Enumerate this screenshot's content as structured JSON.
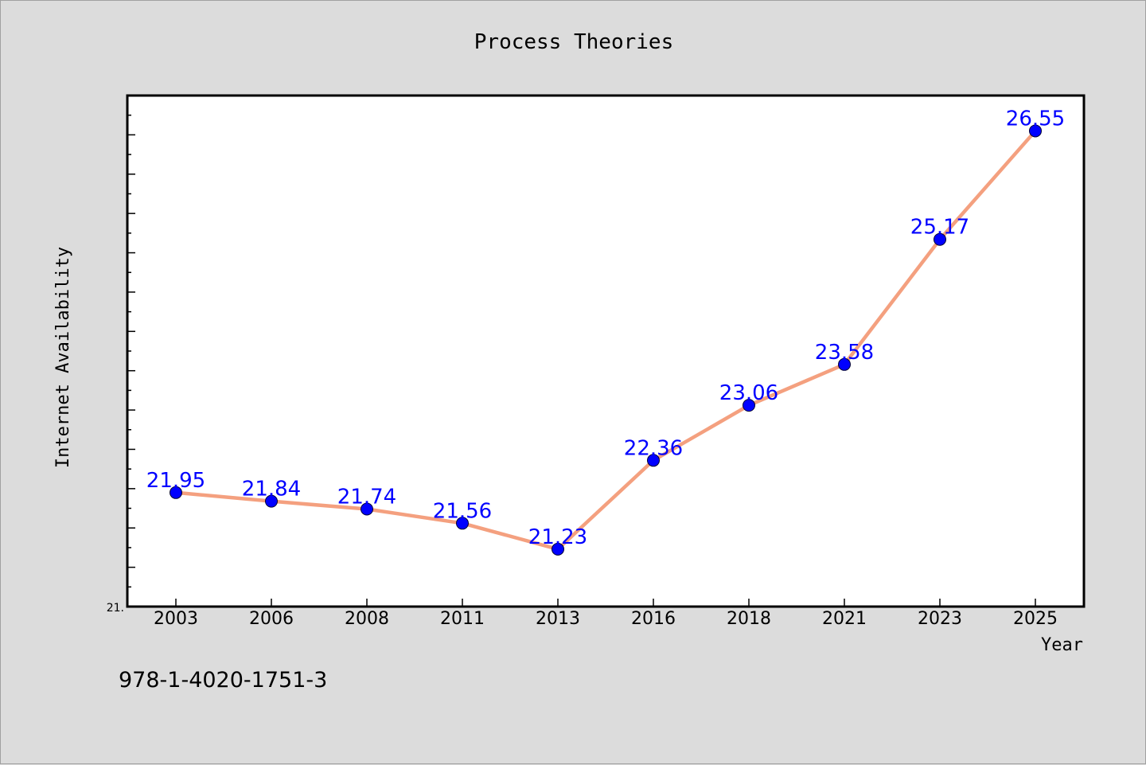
{
  "chart_data": {
    "type": "line",
    "title": "Process Theories",
    "xlabel": "Year",
    "ylabel": "Internet Availability",
    "categories": [
      "2003",
      "2006",
      "2008",
      "2011",
      "2013",
      "2016",
      "2018",
      "2021",
      "2023",
      "2025"
    ],
    "series": [
      {
        "values": [
          21.95,
          21.84,
          21.74,
          21.56,
          21.23,
          22.36,
          23.06,
          23.58,
          25.17,
          26.55
        ]
      }
    ],
    "data_labels": [
      "21.95",
      "21.84",
      "21.74",
      "21.56",
      "21.23",
      "22.36",
      "23.06",
      "23.58",
      "25.17",
      "26.55"
    ],
    "ylim": [
      20.5,
      27.0
    ],
    "y_tick_labels": [
      "21."
    ],
    "grid": false,
    "legend": "none",
    "colors": {
      "line": "#f4a07f",
      "marker": "#0000ff",
      "data_label": "#0000ff",
      "plot_background": "#ffffff",
      "figure_background": "#dcdcdc"
    }
  },
  "footer": {
    "isbn": "978-1-4020-1751-3"
  }
}
